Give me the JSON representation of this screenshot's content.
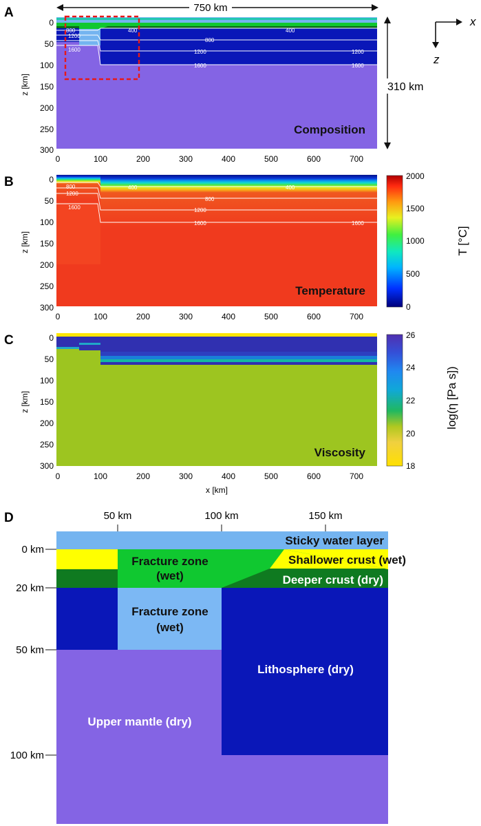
{
  "panels": {
    "A": {
      "letter": "A",
      "title": "Composition",
      "ylabel": "z [km]",
      "yticks": [
        "0",
        "50",
        "100",
        "150",
        "200",
        "250",
        "300"
      ],
      "xticks": [
        "0",
        "100",
        "200",
        "300",
        "400",
        "500",
        "600",
        "700"
      ],
      "width_arrow_label": "750 km",
      "depth_arrow_label": "310 km",
      "contours": [
        "800",
        "400",
        "400",
        "1200",
        "800",
        "1600",
        "1200",
        "1200",
        "1600",
        "1600"
      ],
      "axes_icon": {
        "x": "x",
        "z": "z"
      }
    },
    "B": {
      "letter": "B",
      "title": "Temperature",
      "ylabel": "z [km]",
      "yticks": [
        "0",
        "50",
        "100",
        "150",
        "200",
        "250",
        "300"
      ],
      "xticks": [
        "0",
        "100",
        "200",
        "300",
        "400",
        "500",
        "600",
        "700"
      ],
      "contours": [
        "800",
        "400",
        "400",
        "1200",
        "800",
        "1600",
        "1200",
        "1600",
        "1600"
      ],
      "colorbar": {
        "label": "T [°C]",
        "ticks": [
          "2000",
          "1500",
          "1000",
          "500",
          "0"
        ]
      }
    },
    "C": {
      "letter": "C",
      "title": "Viscosity",
      "ylabel": "z [km]",
      "xlabel": "x [km]",
      "yticks": [
        "0",
        "50",
        "100",
        "150",
        "200",
        "250",
        "300"
      ],
      "xticks": [
        "0",
        "100",
        "200",
        "300",
        "400",
        "500",
        "600",
        "700"
      ],
      "colorbar": {
        "label": "log(η [Pa s])",
        "ticks": [
          "26",
          "24",
          "22",
          "20",
          "18"
        ]
      }
    },
    "D": {
      "letter": "D",
      "top_ticks": [
        "50 km",
        "100 km",
        "150 km"
      ],
      "left_ticks": [
        "0 km",
        "20 km",
        "50 km",
        "100 km"
      ],
      "regions": {
        "sticky_water": "Sticky water layer",
        "shallow_crust": "Shallower crust (wet)",
        "deep_crust": "Deeper crust (dry)",
        "fz_upper_1": "Fracture zone",
        "fz_upper_2": "(wet)",
        "fz_lower_1": "Fracture zone",
        "fz_lower_2": "(wet)",
        "lithosphere": "Lithosphere (dry)",
        "upper_mantle": "Upper mantle (dry)"
      }
    }
  },
  "colors": {
    "water": "#74b4f0",
    "shallow_crust": "#ffff00",
    "deep_crust": "#0f7a20",
    "fracture_zone": "#10c830",
    "fracture_zone_lower": "#7cb8f4",
    "lithosphere": "#0a17b8",
    "mantle": "#8464e4",
    "viscosity_low": "#9dc520",
    "viscosity_high": "#3030b0",
    "temperature_hot": "#f03a1e",
    "roi_box": "#e81818"
  }
}
